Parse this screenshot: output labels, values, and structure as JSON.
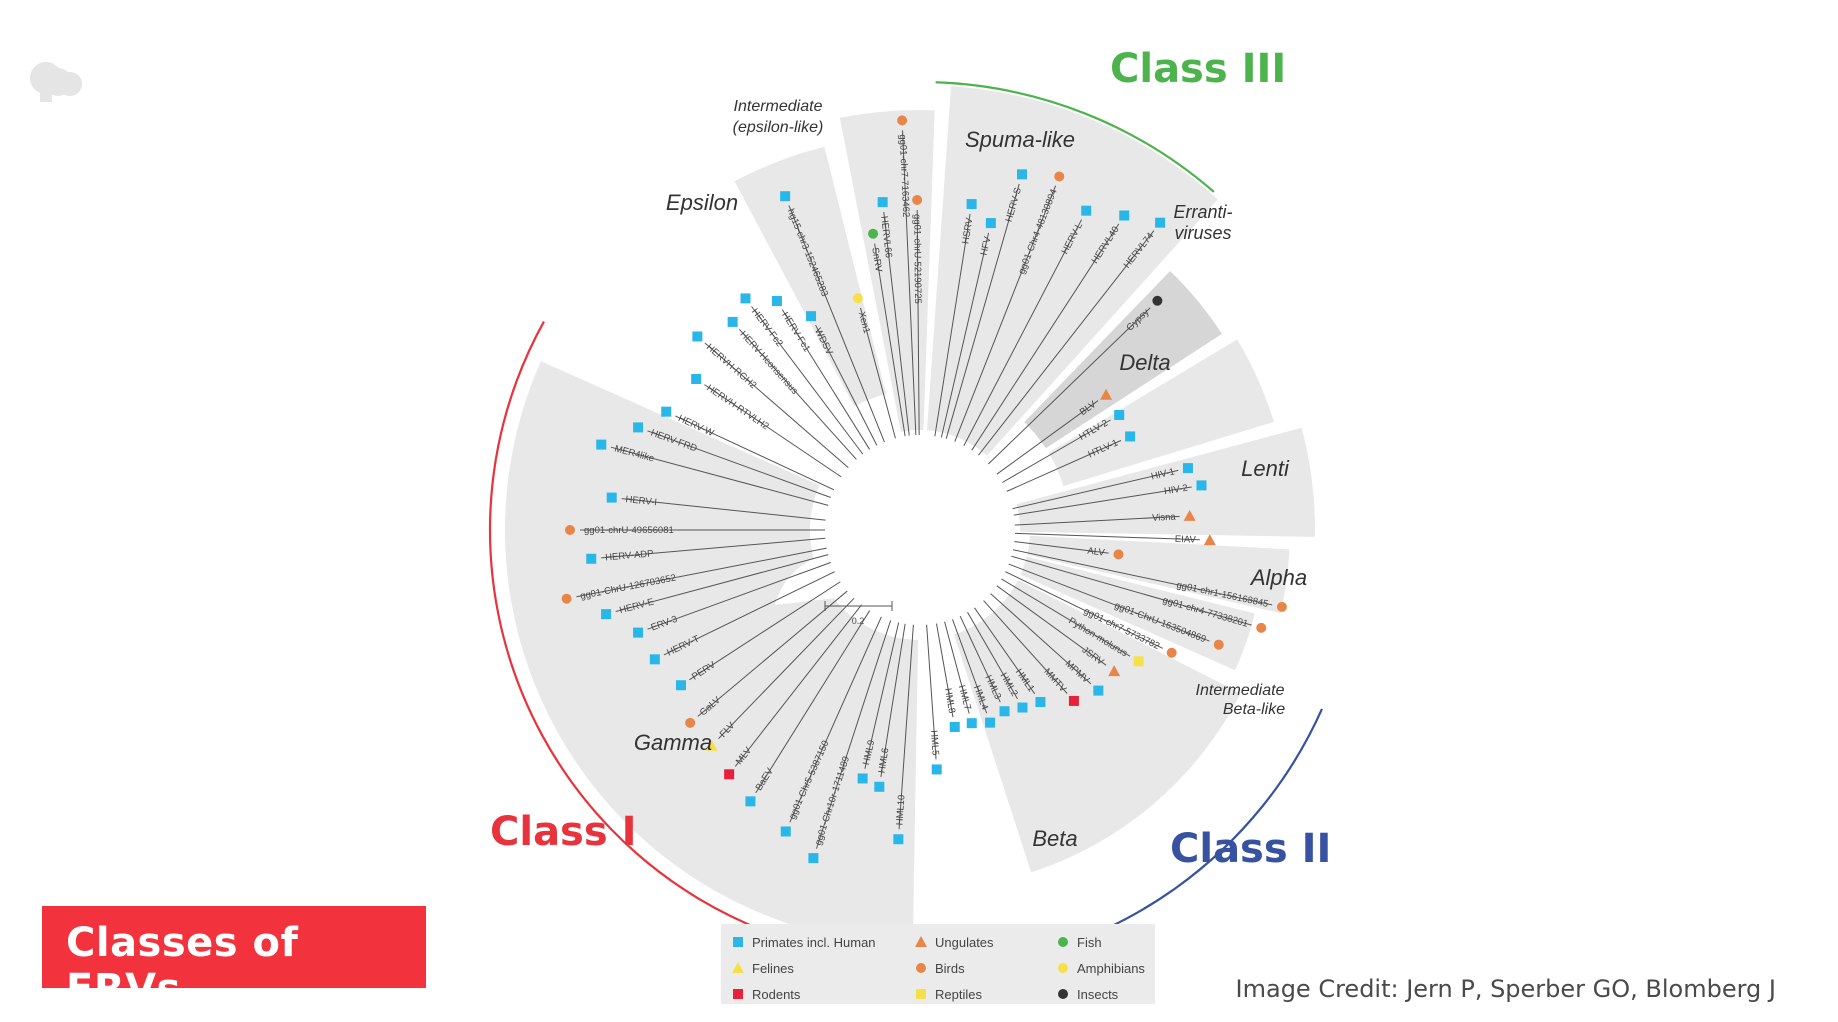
{
  "classes": [
    {
      "label": "Class I",
      "color": "#e8323c"
    },
    {
      "label": "Class II",
      "color": "#3652a0"
    },
    {
      "label": "Class III",
      "color": "#4db34d"
    }
  ],
  "clades": [
    "Intermediate",
    "(epsilon-like)",
    "Spuma-like",
    "Epsilon",
    "Erranti-",
    "viruses",
    "Delta",
    "Lenti",
    "Alpha",
    "Intermediate",
    "Beta-like",
    "Gamma",
    "Beta"
  ],
  "tips": [
    "gg01-chr7-7163462",
    "HERVL66",
    "gg01-chrU-52190725",
    "HSRV",
    "HFV",
    "HERV-S",
    "gg01-Chr4-48130894",
    "HERV-L",
    "HERVL40",
    "HERVL74",
    "Gypsy",
    "SnRV",
    "hg15-chr3-152465283",
    "Xen1",
    "WDSV",
    "HERV-Fc1",
    "HERV-Fc2",
    "HERV-Hconsensus",
    "HERVH-RGH2",
    "HERVH-RTVLH2",
    "HERV-W",
    "HERV-FRD",
    "MER4like",
    "HERV-I",
    "gg01-chrU-49656081",
    "HERV-ADP",
    "gg01-ChrU-126703652",
    "HERV-E",
    "ERV-3",
    "HERV-T",
    "PERV",
    "GaLV",
    "FLV",
    "MLV",
    "BaEV",
    "gg01-Chr5-5387150",
    "gg01-Chr10r-1711489",
    "BLV",
    "HTLV-2",
    "HTLV-1",
    "HIV-1",
    "HIV-2",
    "Visna",
    "EIAV",
    "ALV",
    "gg01-chr1-156168845",
    "gg01-chr4-77338201",
    "gg01-ChrU-163504869",
    "gg01-chr7-5733782",
    "Python-molurus",
    "JSRV",
    "MPMV",
    "MMTV",
    "HML1",
    "HML2",
    "HML3",
    "HML4",
    "HML7",
    "HML8",
    "HML5",
    "HML10",
    "HML6",
    "HML9"
  ],
  "scale_label": "0.2",
  "legend": [
    {
      "label": "Primates incl. Human",
      "shape": "square",
      "color": "#29b6e8"
    },
    {
      "label": "Ungulates",
      "shape": "triangle",
      "color": "#e8864a"
    },
    {
      "label": "Fish",
      "shape": "circle",
      "color": "#4db34d"
    },
    {
      "label": "Felines",
      "shape": "triangle",
      "color": "#f5e04a"
    },
    {
      "label": "Birds",
      "shape": "circle",
      "color": "#e8864a"
    },
    {
      "label": "Amphibians",
      "shape": "circle",
      "color": "#f5e04a"
    },
    {
      "label": "Rodents",
      "shape": "square",
      "color": "#e8203a"
    },
    {
      "label": "Reptiles",
      "shape": "square",
      "color": "#f5e04a"
    },
    {
      "label": "Insects",
      "shape": "circle",
      "color": "#333333"
    }
  ],
  "title": "Classes of ERVs",
  "credit": "Image Credit: Jern P, Sperber GO, Blomberg J",
  "logo": "pbs-head-logo-icon"
}
